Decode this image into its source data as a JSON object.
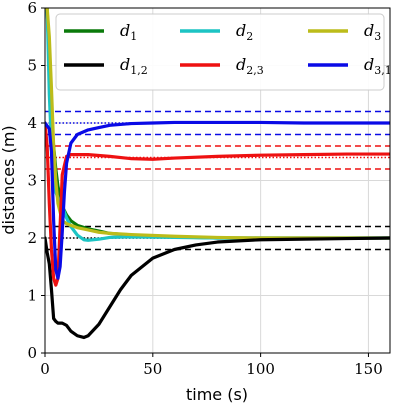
{
  "chart_data": {
    "type": "line",
    "xlabel": "time (s)",
    "ylabel": "distances (m)",
    "xlim": [
      0,
      160
    ],
    "ylim": [
      0,
      6
    ],
    "xticks": [
      0,
      50,
      100,
      150
    ],
    "yticks": [
      0,
      1,
      2,
      3,
      4,
      5,
      6
    ],
    "x_tick_labels": [
      "0",
      "50",
      "100",
      "150"
    ],
    "y_tick_labels": [
      "0",
      "1",
      "2",
      "3",
      "4",
      "5",
      "6"
    ],
    "grid": true,
    "legend_position": "top",
    "series": [
      {
        "name": "d_1",
        "label_main": "d",
        "label_sub": "1",
        "color": "#0a7a0a",
        "x": [
          0,
          1,
          2,
          3,
          4,
          5,
          6,
          8,
          10,
          12,
          15,
          20,
          25,
          30,
          40,
          60,
          80,
          100,
          120,
          140,
          160
        ],
        "y": [
          6.0,
          6.0,
          5.0,
          4.1,
          3.6,
          3.2,
          2.9,
          2.55,
          2.4,
          2.3,
          2.22,
          2.16,
          2.12,
          2.08,
          2.05,
          2.02,
          2.0,
          2.0,
          2.0,
          2.0,
          2.0
        ]
      },
      {
        "name": "d_2",
        "label_main": "d",
        "label_sub": "2",
        "color": "#1cc4c4",
        "x": [
          0,
          1,
          2,
          3,
          4,
          5,
          6,
          8,
          10,
          12,
          15,
          18,
          20,
          25,
          30,
          40,
          60,
          80,
          100,
          120,
          140,
          160
        ],
        "y": [
          6.0,
          6.0,
          4.5,
          3.6,
          3.0,
          2.8,
          2.7,
          2.55,
          2.35,
          2.2,
          2.05,
          1.97,
          1.96,
          1.98,
          2.01,
          2.02,
          2.01,
          2.0,
          2.0,
          2.0,
          2.0,
          2.0
        ]
      },
      {
        "name": "d_3",
        "label_main": "d",
        "label_sub": "3",
        "color": "#bcbc1a",
        "x": [
          0,
          1,
          2,
          3,
          4,
          5,
          6,
          8,
          10,
          12,
          15,
          20,
          25,
          30,
          40,
          60,
          80,
          100,
          120,
          140,
          160
        ],
        "y": [
          6.0,
          6.0,
          5.5,
          4.6,
          3.6,
          3.0,
          2.6,
          2.3,
          2.25,
          2.22,
          2.18,
          2.14,
          2.1,
          2.08,
          2.06,
          2.03,
          2.01,
          2.0,
          2.0,
          2.0,
          2.0
        ]
      },
      {
        "name": "d_{1,2}",
        "label_main": "d",
        "label_sub": "1,2",
        "color": "#000000",
        "x": [
          0,
          1,
          2,
          3,
          4,
          5,
          6,
          8,
          10,
          12,
          15,
          18,
          20,
          25,
          30,
          35,
          40,
          50,
          60,
          70,
          80,
          100,
          120,
          140,
          160
        ],
        "y": [
          2.0,
          1.75,
          1.55,
          1.1,
          0.6,
          0.55,
          0.52,
          0.52,
          0.48,
          0.38,
          0.3,
          0.27,
          0.3,
          0.5,
          0.8,
          1.1,
          1.35,
          1.65,
          1.8,
          1.88,
          1.93,
          1.97,
          1.98,
          1.99,
          2.0
        ]
      },
      {
        "name": "d_{2,3}",
        "label_main": "d",
        "label_sub": "2,3",
        "color": "#ee1111",
        "x": [
          0,
          1,
          2,
          3,
          4,
          5,
          6,
          7,
          8,
          10,
          12,
          15,
          20,
          30,
          40,
          50,
          60,
          80,
          100,
          120,
          140,
          160
        ],
        "y": [
          4.0,
          3.6,
          2.6,
          1.8,
          1.3,
          1.18,
          1.3,
          2.2,
          3.1,
          3.42,
          3.45,
          3.45,
          3.45,
          3.42,
          3.38,
          3.37,
          3.39,
          3.42,
          3.44,
          3.45,
          3.46,
          3.46
        ]
      },
      {
        "name": "d_{3,1}",
        "label_main": "d",
        "label_sub": "3,1",
        "color": "#0a0ae6",
        "x": [
          0,
          1,
          2,
          3,
          4,
          5,
          6,
          7,
          8,
          9,
          10,
          12,
          15,
          20,
          25,
          30,
          40,
          50,
          60,
          80,
          100,
          120,
          140,
          160
        ],
        "y": [
          4.0,
          3.95,
          3.9,
          3.5,
          2.3,
          1.45,
          1.3,
          1.5,
          2.1,
          2.8,
          3.3,
          3.65,
          3.8,
          3.88,
          3.92,
          3.96,
          3.99,
          4.0,
          4.01,
          4.01,
          4.01,
          4.0,
          4.0,
          4.0
        ]
      }
    ],
    "reference_lines": [
      {
        "y": 4.2,
        "color": "#0a0ae6",
        "style": "dashed"
      },
      {
        "y": 4.0,
        "color": "#0a0ae6",
        "style": "dotted"
      },
      {
        "y": 3.8,
        "color": "#0a0ae6",
        "style": "dashed"
      },
      {
        "y": 3.6,
        "color": "#ee1111",
        "style": "dashed"
      },
      {
        "y": 3.4,
        "color": "#ee1111",
        "style": "dotted"
      },
      {
        "y": 3.2,
        "color": "#ee1111",
        "style": "dashed"
      },
      {
        "y": 2.2,
        "color": "#000000",
        "style": "dashed"
      },
      {
        "y": 2.0,
        "color": "#000000",
        "style": "dotted"
      },
      {
        "y": 1.8,
        "color": "#000000",
        "style": "dashed"
      }
    ]
  }
}
